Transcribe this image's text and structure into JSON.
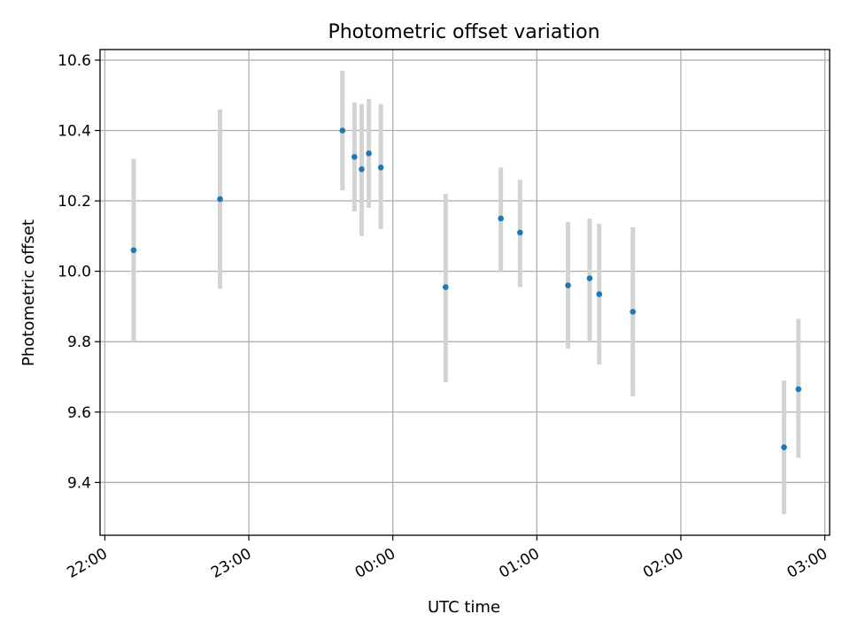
{
  "chart_data": {
    "type": "scatter",
    "title": "Photometric offset variation",
    "xlabel": "UTC time",
    "ylabel": "Photometric offset",
    "x_unit": "time of day",
    "xlim": [
      "21:58",
      "03:02"
    ],
    "ylim": [
      9.25,
      10.63
    ],
    "x_ticks": [
      "22:00",
      "23:00",
      "00:00",
      "01:00",
      "02:00",
      "03:00"
    ],
    "y_ticks": [
      "9.4",
      "9.6",
      "9.8",
      "10.0",
      "10.2",
      "10.4",
      "10.6"
    ],
    "grid": true,
    "colors": {
      "points": "#1f77b4",
      "error_bars": "#d3d3d3",
      "grid": "#b0b0b0"
    },
    "points": [
      {
        "x": "22:12",
        "y": 10.06,
        "yerr_low": 9.8,
        "yerr_high": 10.32
      },
      {
        "x": "22:48",
        "y": 10.205,
        "yerr_low": 9.95,
        "yerr_high": 10.46
      },
      {
        "x": "23:39",
        "y": 10.4,
        "yerr_low": 10.23,
        "yerr_high": 10.57
      },
      {
        "x": "23:44",
        "y": 10.325,
        "yerr_low": 10.17,
        "yerr_high": 10.48
      },
      {
        "x": "23:47",
        "y": 10.29,
        "yerr_low": 10.1,
        "yerr_high": 10.475
      },
      {
        "x": "23:50",
        "y": 10.335,
        "yerr_low": 10.18,
        "yerr_high": 10.49
      },
      {
        "x": "23:55",
        "y": 10.295,
        "yerr_low": 10.12,
        "yerr_high": 10.475
      },
      {
        "x": "00:22",
        "y": 9.955,
        "yerr_low": 9.685,
        "yerr_high": 10.22
      },
      {
        "x": "00:45",
        "y": 10.15,
        "yerr_low": 10.0,
        "yerr_high": 10.295
      },
      {
        "x": "00:53",
        "y": 10.11,
        "yerr_low": 9.955,
        "yerr_high": 10.26
      },
      {
        "x": "01:13",
        "y": 9.96,
        "yerr_low": 9.78,
        "yerr_high": 10.14
      },
      {
        "x": "01:22",
        "y": 9.98,
        "yerr_low": 9.8,
        "yerr_high": 10.15
      },
      {
        "x": "01:26",
        "y": 9.935,
        "yerr_low": 9.735,
        "yerr_high": 10.135
      },
      {
        "x": "01:40",
        "y": 9.885,
        "yerr_low": 9.645,
        "yerr_high": 10.125
      },
      {
        "x": "02:43",
        "y": 9.5,
        "yerr_low": 9.31,
        "yerr_high": 9.69
      },
      {
        "x": "02:49",
        "y": 9.665,
        "yerr_low": 9.47,
        "yerr_high": 9.865
      }
    ]
  }
}
